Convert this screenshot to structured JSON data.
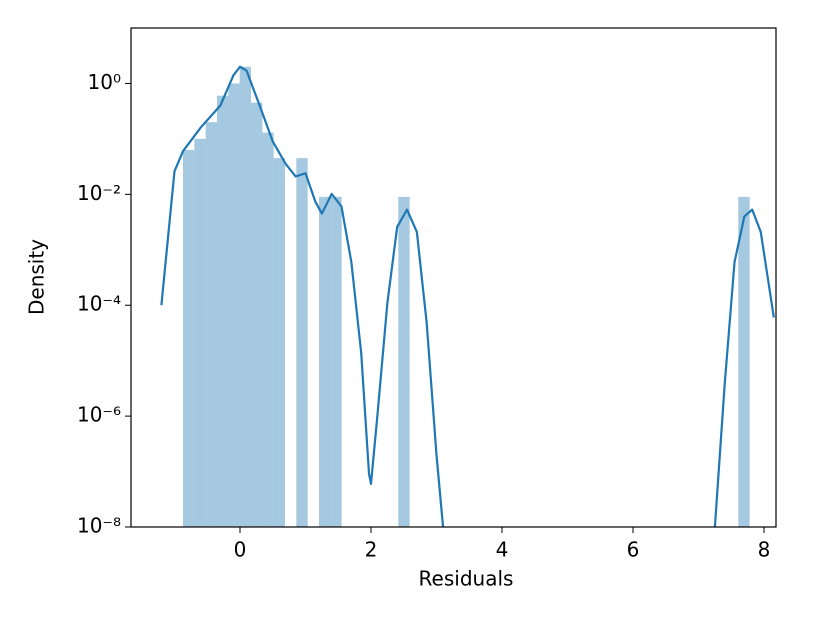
{
  "chart_data": {
    "type": "histogram",
    "xlabel": "Residuals",
    "ylabel": "Density",
    "bins": [
      -0.87,
      -0.697,
      -0.524,
      -0.351,
      -0.178,
      -0.005,
      0.168,
      0.341,
      0.514,
      0.687,
      0.86,
      1.033,
      1.206,
      1.379,
      1.552,
      1.725,
      1.898,
      2.071,
      2.244,
      2.417,
      2.59,
      2.763,
      2.936,
      3.109,
      3.282,
      3.455,
      3.628,
      3.801,
      3.974,
      4.147,
      4.32,
      4.493,
      4.666,
      4.839,
      5.012,
      5.185,
      5.358,
      5.531,
      5.704,
      5.877,
      6.05,
      6.223,
      6.396,
      6.569,
      6.742,
      6.915,
      7.088,
      7.261,
      7.434,
      7.607,
      7.78
    ],
    "counts": [
      0.063,
      0.1,
      0.2,
      0.6,
      1.0,
      2.0,
      0.45,
      0.13,
      0.045,
      0,
      0.045,
      0,
      0.009,
      0.009,
      0,
      0,
      0,
      0,
      0,
      0.009,
      0,
      0,
      0,
      0,
      0,
      0,
      0,
      0,
      0,
      0,
      0,
      0,
      0,
      0,
      0,
      0,
      0,
      0,
      0,
      0,
      0,
      0,
      0,
      0,
      0,
      0,
      0,
      0,
      0,
      0.009
    ],
    "color": "#1f77b4",
    "bar_opacity": 0.4,
    "kde": {
      "color": "#1f77b4",
      "x": [
        -1.2,
        -1.0,
        -0.87,
        -0.6,
        -0.3,
        -0.1,
        0.0,
        0.1,
        0.3,
        0.5,
        0.7,
        0.85,
        1.0,
        1.15,
        1.25,
        1.4,
        1.55,
        1.7,
        1.85,
        1.97,
        2.0,
        2.1,
        2.25,
        2.4,
        2.55,
        2.7,
        2.85,
        3.0,
        3.1,
        5.0,
        7.25,
        7.4,
        7.55,
        7.7,
        7.82,
        7.95,
        8.15
      ],
      "y": [
        0.0001,
        0.026,
        0.06,
        0.16,
        0.4,
        1.4,
        2.0,
        1.7,
        0.4,
        0.09,
        0.035,
        0.021,
        0.024,
        0.0074,
        0.0045,
        0.0102,
        0.006,
        0.0006,
        1.4e-05,
        9e-08,
        6e-08,
        1.1e-06,
        0.00011,
        0.0026,
        0.0053,
        0.0021,
        4.8e-05,
        2e-07,
        1e-08,
        null,
        1e-08,
        3.8e-06,
        0.0006,
        0.004,
        0.0053,
        0.0021,
        6e-05
      ]
    },
    "xlim": [
      -1.664,
      8.183
    ],
    "ylim": [
      1e-08,
      10
    ],
    "yscale": "log",
    "xticks": [
      0,
      2,
      4,
      6,
      8
    ],
    "yticks": [
      {
        "value": 1,
        "label": "10⁰"
      },
      {
        "value": 0.01,
        "label": "10⁻²"
      },
      {
        "value": 0.0001,
        "label": "10⁻⁴"
      },
      {
        "value": 1e-06,
        "label": "10⁻⁶"
      },
      {
        "value": 1e-08,
        "label": "10⁻⁸"
      }
    ]
  }
}
